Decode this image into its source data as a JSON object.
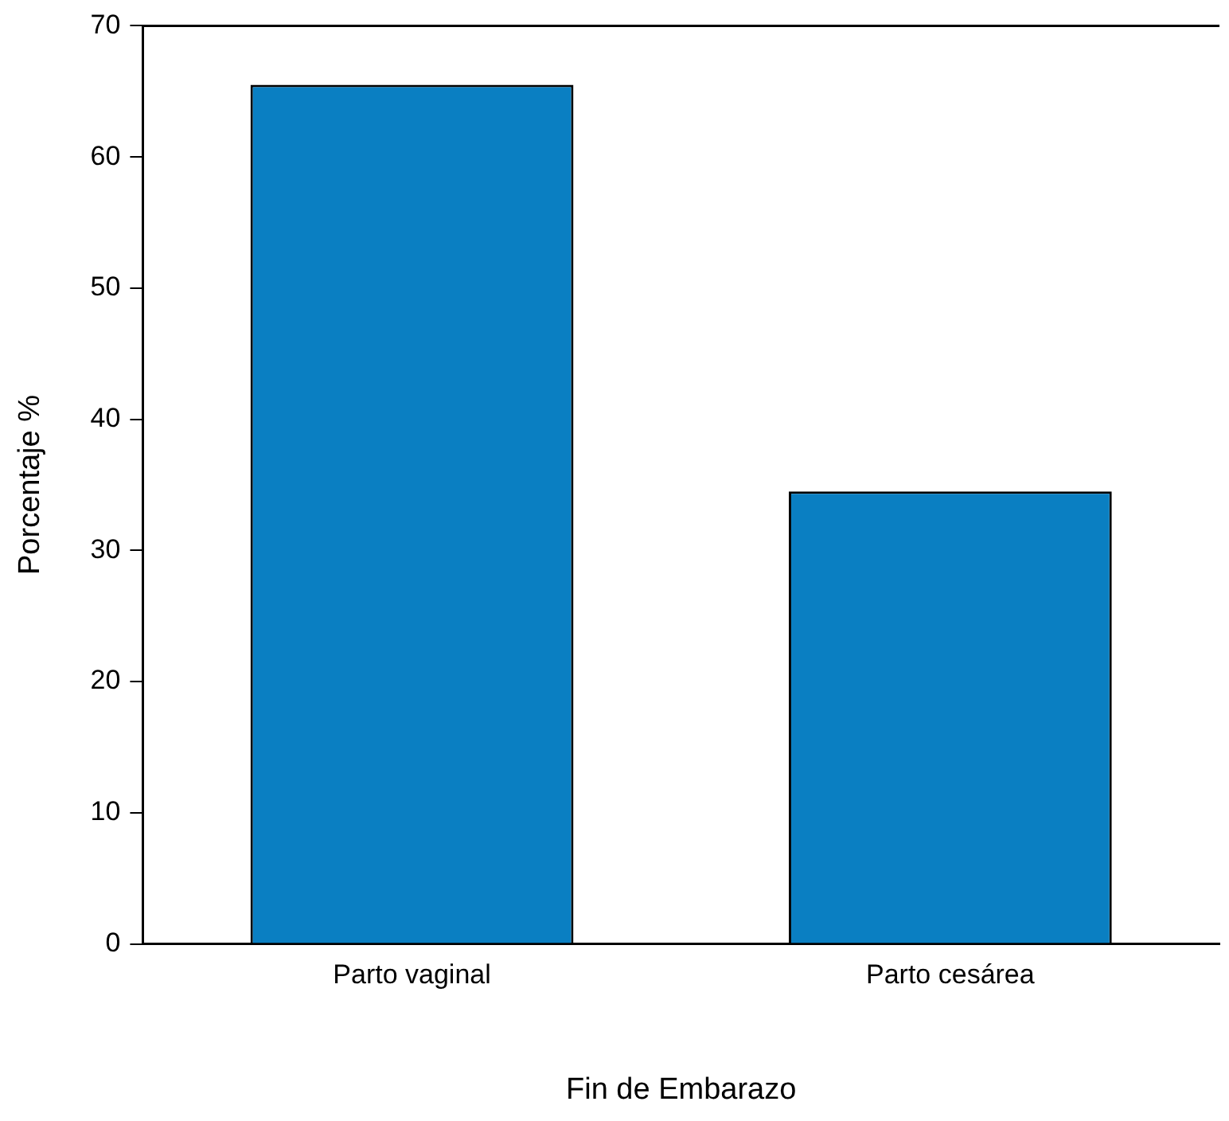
{
  "chart_data": {
    "type": "bar",
    "xlabel": "Fin de Embarazo",
    "ylabel": "Porcentaje %",
    "categories": [
      "Parto vaginal",
      "Parto cesárea"
    ],
    "values": [
      65.5,
      34.5
    ],
    "color": "#0a7fc2",
    "ylim": [
      0,
      70
    ],
    "yticks": [
      0,
      10,
      20,
      30,
      40,
      50,
      60,
      70
    ],
    "grid": false,
    "legend": false
  }
}
